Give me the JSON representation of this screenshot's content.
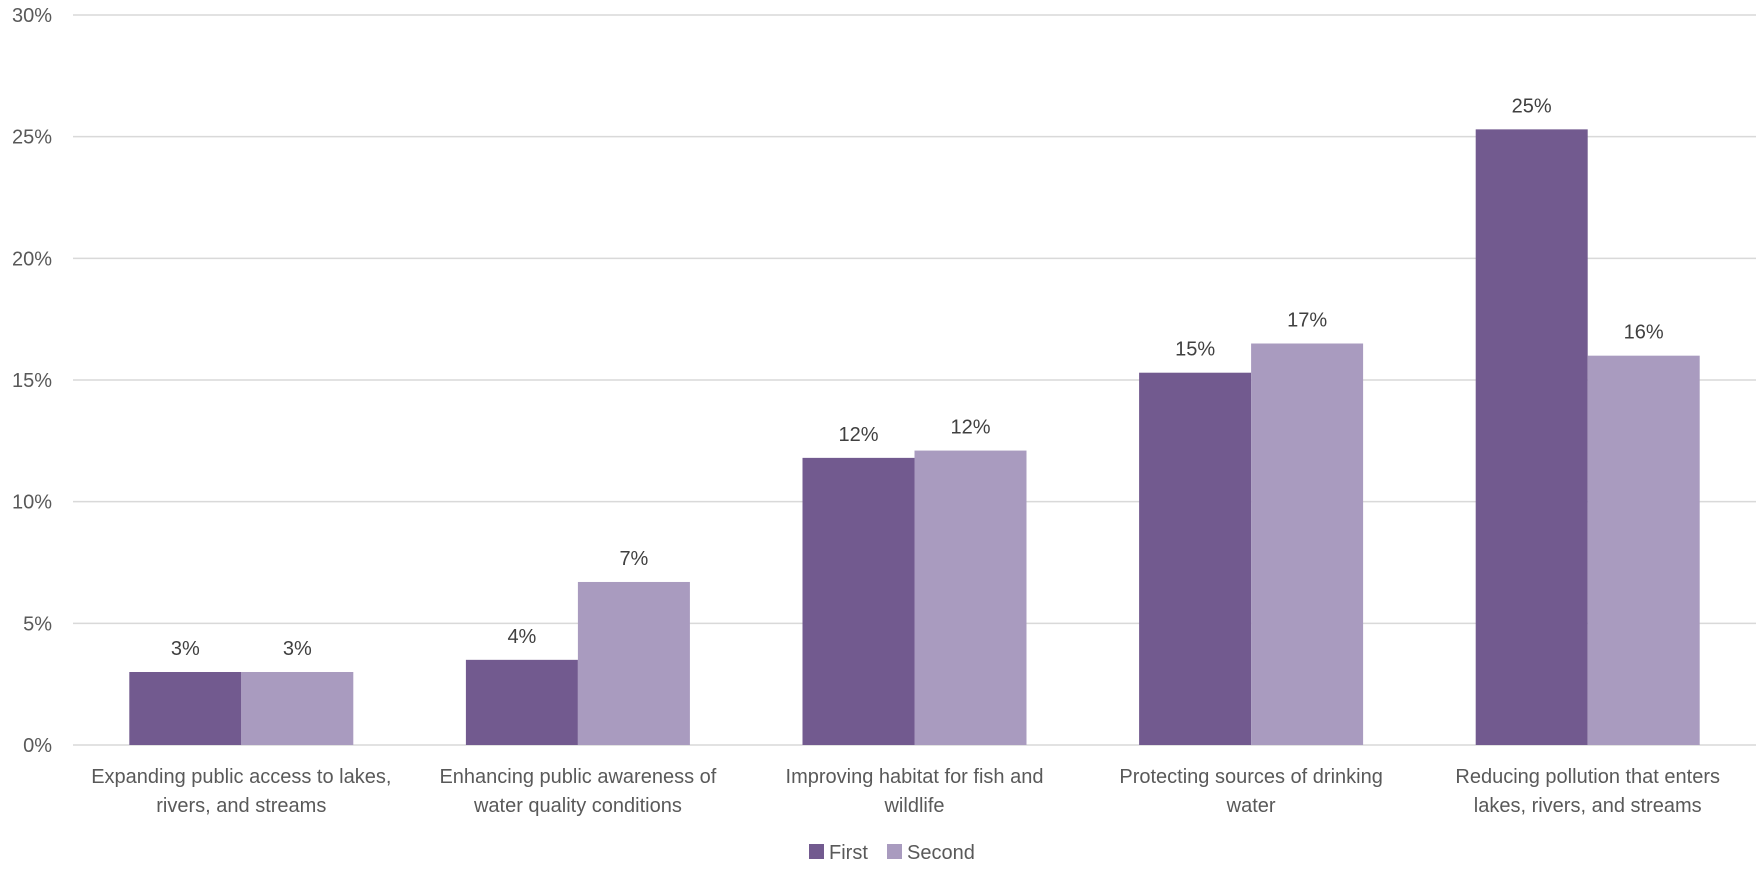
{
  "chart_data": {
    "type": "bar",
    "title": "",
    "xlabel": "",
    "ylabel": "",
    "ylim": [
      0,
      30
    ],
    "yticks": [
      0,
      5,
      10,
      15,
      20,
      25,
      30
    ],
    "ytick_labels": [
      "0%",
      "5%",
      "10%",
      "15%",
      "20%",
      "25%",
      "30%"
    ],
    "grid": true,
    "legend_position": "bottom",
    "categories": [
      [
        "Expanding public access to lakes,",
        "rivers, and streams"
      ],
      [
        "Enhancing public awareness of",
        "water quality conditions"
      ],
      [
        "Improving habitat for fish and",
        "wildlife"
      ],
      [
        "Protecting sources of drinking",
        "water"
      ],
      [
        "Reducing pollution that enters",
        "lakes, rivers, and streams"
      ]
    ],
    "series": [
      {
        "name": "First",
        "color": "#725a8f",
        "values": [
          3.0,
          3.5,
          11.8,
          15.3,
          25.3
        ],
        "labels": [
          "3%",
          "4%",
          "12%",
          "15%",
          "25%"
        ]
      },
      {
        "name": "Second",
        "color": "#a99bbf",
        "values": [
          3.0,
          6.7,
          12.1,
          16.5,
          16.0
        ],
        "labels": [
          "3%",
          "7%",
          "12%",
          "17%",
          "16%"
        ]
      }
    ]
  }
}
